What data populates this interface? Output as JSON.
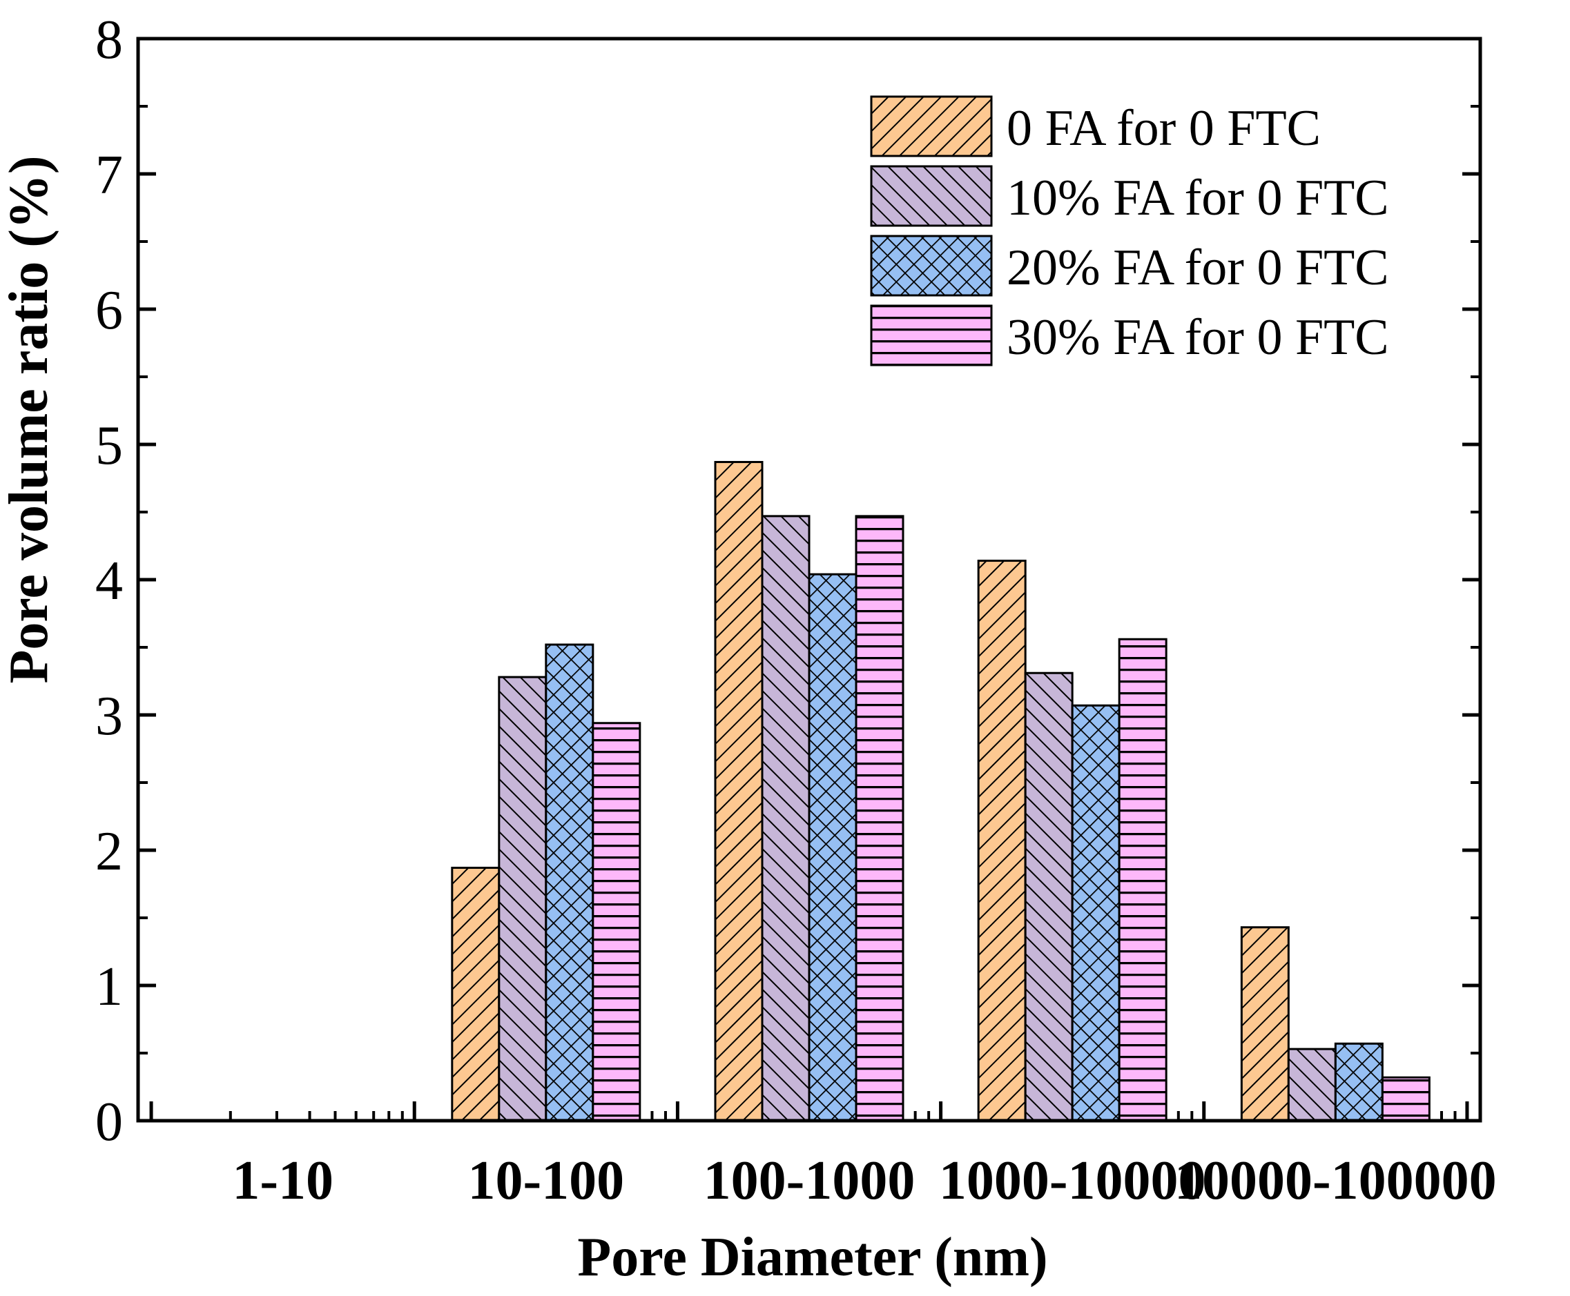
{
  "chart_data": {
    "type": "bar",
    "title": "",
    "xlabel": "Pore Diameter (nm)",
    "ylabel": "Pore volume ratio (%)",
    "ylim": [
      0,
      8
    ],
    "yticks": [
      "0",
      "1",
      "2",
      "3",
      "4",
      "5",
      "6",
      "7",
      "8"
    ],
    "categories": [
      "1-10",
      "10-100",
      "100-1000",
      "1000-10000",
      "10000-100000"
    ],
    "series": [
      {
        "name": "0 FA for 0 FTC",
        "color": "#FDC891",
        "pattern": "diag-up",
        "values": [
          0,
          1.87,
          4.87,
          4.14,
          1.43
        ]
      },
      {
        "name": "10% FA for 0 FTC",
        "color": "#C7B6D8",
        "pattern": "diag-down",
        "values": [
          0,
          3.28,
          4.47,
          3.31,
          0.53
        ]
      },
      {
        "name": "20% FA for 0 FTC",
        "color": "#96BFF3",
        "pattern": "crosshatch",
        "values": [
          0,
          3.52,
          4.04,
          3.07,
          0.57
        ]
      },
      {
        "name": "30% FA for 0 FTC",
        "color": "#FDB8FA",
        "pattern": "horizontal",
        "values": [
          0,
          2.94,
          4.47,
          3.56,
          0.32
        ]
      }
    ],
    "legend_position": "top-right",
    "grid": false
  }
}
